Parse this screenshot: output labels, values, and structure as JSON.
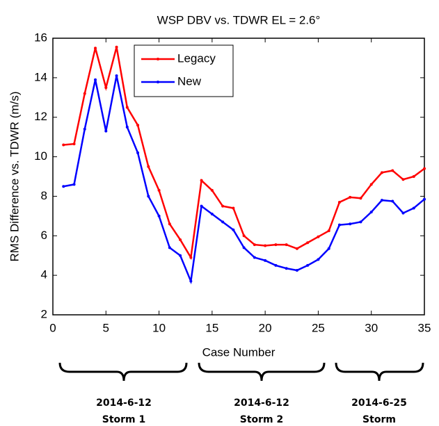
{
  "chart_data": {
    "type": "line",
    "title": "WSP DBV vs. TDWR EL = 2.6°",
    "xlabel": "Case Number",
    "ylabel": "RMS Difference vs. TDWR (m/s)",
    "x": [
      1,
      2,
      3,
      4,
      5,
      6,
      7,
      8,
      9,
      10,
      11,
      12,
      13,
      14,
      15,
      16,
      17,
      18,
      19,
      20,
      21,
      22,
      23,
      24,
      25,
      26,
      27,
      28,
      29,
      30,
      31,
      32,
      33,
      34,
      35
    ],
    "series": [
      {
        "name": "Legacy",
        "color": "#ff0000",
        "values": [
          10.6,
          10.65,
          13.2,
          15.5,
          13.5,
          15.55,
          12.5,
          11.6,
          9.5,
          8.3,
          6.6,
          5.8,
          4.9,
          8.8,
          8.3,
          7.5,
          7.4,
          6.0,
          5.55,
          5.5,
          5.55,
          5.55,
          5.35,
          5.65,
          5.95,
          6.25,
          7.7,
          7.95,
          7.9,
          8.6,
          9.2,
          9.3,
          8.85,
          9.0,
          9.4
        ]
      },
      {
        "name": "New",
        "color": "#0000ff",
        "values": [
          8.5,
          8.6,
          11.4,
          13.9,
          11.3,
          14.1,
          11.5,
          10.2,
          8.0,
          7.0,
          5.4,
          5.0,
          3.7,
          7.5,
          7.1,
          6.7,
          6.3,
          5.4,
          4.9,
          4.75,
          4.5,
          4.35,
          4.25,
          4.5,
          4.8,
          5.35,
          6.55,
          6.6,
          6.7,
          7.2,
          7.8,
          7.75,
          7.15,
          7.4,
          7.85
        ]
      }
    ],
    "xlim": [
      0,
      35
    ],
    "xticks": [
      0,
      5,
      10,
      15,
      20,
      25,
      30,
      35
    ],
    "ylim": [
      2,
      16
    ],
    "yticks": [
      2,
      4,
      6,
      8,
      10,
      12,
      14,
      16
    ],
    "legend": "upper center",
    "annotations": [
      {
        "lines": [
          "2014-6-12",
          "Storm 1"
        ]
      },
      {
        "lines": [
          "2014-6-12",
          "Storm 2"
        ]
      },
      {
        "lines": [
          "2014-6-25",
          "Storm"
        ]
      }
    ]
  }
}
